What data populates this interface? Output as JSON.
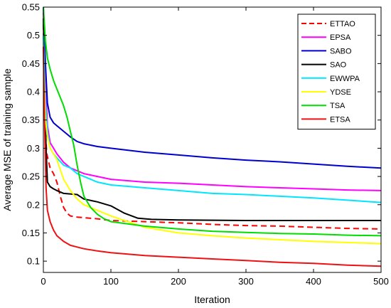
{
  "chart_data": {
    "type": "line",
    "title": "",
    "xlabel": "Iteration",
    "ylabel": "Average MSE of training sample",
    "xlim": [
      0,
      500
    ],
    "ylim": [
      0.08,
      0.55
    ],
    "x_ticks": [
      0,
      100,
      200,
      300,
      400,
      500
    ],
    "y_ticks": [
      0.1,
      0.15,
      0.2,
      0.25,
      0.3,
      0.35,
      0.4,
      0.45,
      0.5,
      0.55
    ],
    "x_tick_labels": [
      "0",
      "100",
      "200",
      "300",
      "400",
      "500"
    ],
    "y_tick_labels": [
      "0.1",
      "0.15",
      "0.2",
      "0.25",
      "0.3",
      "0.35",
      "0.4",
      "0.45",
      "0.5",
      "0.55"
    ],
    "grid": false,
    "legend_position": "top-right",
    "series": [
      {
        "name": "ETTAO",
        "color": "#ff0000",
        "dash": true,
        "points": [
          [
            0,
            0.52
          ],
          [
            2,
            0.35
          ],
          [
            5,
            0.29
          ],
          [
            10,
            0.265
          ],
          [
            15,
            0.255
          ],
          [
            20,
            0.24
          ],
          [
            25,
            0.215
          ],
          [
            30,
            0.195
          ],
          [
            35,
            0.185
          ],
          [
            40,
            0.18
          ],
          [
            50,
            0.178
          ],
          [
            60,
            0.177
          ],
          [
            80,
            0.175
          ],
          [
            100,
            0.172
          ],
          [
            150,
            0.17
          ],
          [
            200,
            0.168
          ],
          [
            250,
            0.165
          ],
          [
            300,
            0.163
          ],
          [
            350,
            0.162
          ],
          [
            400,
            0.16
          ],
          [
            450,
            0.158
          ],
          [
            500,
            0.157
          ]
        ]
      },
      {
        "name": "EPSA",
        "color": "#ff00ff",
        "dash": false,
        "points": [
          [
            0,
            0.54
          ],
          [
            3,
            0.42
          ],
          [
            6,
            0.34
          ],
          [
            10,
            0.31
          ],
          [
            15,
            0.3
          ],
          [
            20,
            0.29
          ],
          [
            30,
            0.275
          ],
          [
            40,
            0.265
          ],
          [
            50,
            0.26
          ],
          [
            60,
            0.255
          ],
          [
            80,
            0.25
          ],
          [
            100,
            0.245
          ],
          [
            150,
            0.24
          ],
          [
            200,
            0.238
          ],
          [
            250,
            0.235
          ],
          [
            300,
            0.232
          ],
          [
            350,
            0.23
          ],
          [
            400,
            0.228
          ],
          [
            450,
            0.226
          ],
          [
            500,
            0.225
          ]
        ]
      },
      {
        "name": "SABO",
        "color": "#0000cd",
        "dash": false,
        "points": [
          [
            0,
            0.55
          ],
          [
            3,
            0.45
          ],
          [
            6,
            0.38
          ],
          [
            10,
            0.355
          ],
          [
            15,
            0.345
          ],
          [
            20,
            0.34
          ],
          [
            30,
            0.33
          ],
          [
            40,
            0.32
          ],
          [
            50,
            0.312
          ],
          [
            60,
            0.308
          ],
          [
            80,
            0.303
          ],
          [
            100,
            0.3
          ],
          [
            150,
            0.293
          ],
          [
            200,
            0.288
          ],
          [
            250,
            0.283
          ],
          [
            300,
            0.279
          ],
          [
            350,
            0.276
          ],
          [
            400,
            0.272
          ],
          [
            450,
            0.268
          ],
          [
            500,
            0.265
          ]
        ]
      },
      {
        "name": "SAO",
        "color": "#000000",
        "dash": false,
        "points": [
          [
            0,
            0.53
          ],
          [
            2,
            0.4
          ],
          [
            4,
            0.3
          ],
          [
            6,
            0.24
          ],
          [
            10,
            0.232
          ],
          [
            15,
            0.228
          ],
          [
            20,
            0.225
          ],
          [
            30,
            0.22
          ],
          [
            50,
            0.218
          ],
          [
            60,
            0.21
          ],
          [
            80,
            0.205
          ],
          [
            100,
            0.198
          ],
          [
            120,
            0.185
          ],
          [
            140,
            0.176
          ],
          [
            160,
            0.174
          ],
          [
            200,
            0.173
          ],
          [
            300,
            0.172
          ],
          [
            400,
            0.172
          ],
          [
            500,
            0.172
          ]
        ]
      },
      {
        "name": "EWWPA",
        "color": "#00e5ff",
        "dash": false,
        "points": [
          [
            0,
            0.5
          ],
          [
            3,
            0.38
          ],
          [
            6,
            0.33
          ],
          [
            10,
            0.3
          ],
          [
            15,
            0.29
          ],
          [
            20,
            0.283
          ],
          [
            30,
            0.27
          ],
          [
            40,
            0.265
          ],
          [
            50,
            0.255
          ],
          [
            60,
            0.25
          ],
          [
            80,
            0.24
          ],
          [
            100,
            0.235
          ],
          [
            150,
            0.23
          ],
          [
            200,
            0.225
          ],
          [
            250,
            0.22
          ],
          [
            300,
            0.218
          ],
          [
            350,
            0.215
          ],
          [
            400,
            0.212
          ],
          [
            450,
            0.208
          ],
          [
            500,
            0.204
          ]
        ]
      },
      {
        "name": "YDSE",
        "color": "#ffff00",
        "dash": false,
        "points": [
          [
            0,
            0.46
          ],
          [
            3,
            0.35
          ],
          [
            6,
            0.32
          ],
          [
            10,
            0.3
          ],
          [
            15,
            0.29
          ],
          [
            20,
            0.28
          ],
          [
            25,
            0.262
          ],
          [
            30,
            0.245
          ],
          [
            40,
            0.225
          ],
          [
            50,
            0.21
          ],
          [
            60,
            0.2
          ],
          [
            80,
            0.19
          ],
          [
            100,
            0.18
          ],
          [
            150,
            0.16
          ],
          [
            200,
            0.15
          ],
          [
            250,
            0.145
          ],
          [
            300,
            0.141
          ],
          [
            350,
            0.138
          ],
          [
            400,
            0.135
          ],
          [
            450,
            0.133
          ],
          [
            500,
            0.131
          ]
        ]
      },
      {
        "name": "TSA",
        "color": "#00dd00",
        "dash": false,
        "points": [
          [
            0,
            0.55
          ],
          [
            3,
            0.49
          ],
          [
            6,
            0.46
          ],
          [
            10,
            0.44
          ],
          [
            15,
            0.42
          ],
          [
            20,
            0.405
          ],
          [
            25,
            0.39
          ],
          [
            30,
            0.375
          ],
          [
            35,
            0.355
          ],
          [
            40,
            0.33
          ],
          [
            45,
            0.305
          ],
          [
            50,
            0.27
          ],
          [
            55,
            0.24
          ],
          [
            60,
            0.215
          ],
          [
            70,
            0.195
          ],
          [
            80,
            0.183
          ],
          [
            90,
            0.175
          ],
          [
            100,
            0.17
          ],
          [
            150,
            0.162
          ],
          [
            200,
            0.157
          ],
          [
            250,
            0.153
          ],
          [
            300,
            0.151
          ],
          [
            350,
            0.149
          ],
          [
            400,
            0.148
          ],
          [
            450,
            0.146
          ],
          [
            500,
            0.145
          ]
        ]
      },
      {
        "name": "ETSA",
        "color": "#ee1111",
        "dash": false,
        "points": [
          [
            0,
            0.48
          ],
          [
            2,
            0.33
          ],
          [
            4,
            0.23
          ],
          [
            6,
            0.19
          ],
          [
            10,
            0.17
          ],
          [
            15,
            0.155
          ],
          [
            20,
            0.145
          ],
          [
            30,
            0.135
          ],
          [
            40,
            0.128
          ],
          [
            50,
            0.125
          ],
          [
            60,
            0.122
          ],
          [
            80,
            0.118
          ],
          [
            100,
            0.115
          ],
          [
            150,
            0.11
          ],
          [
            200,
            0.107
          ],
          [
            250,
            0.104
          ],
          [
            300,
            0.101
          ],
          [
            350,
            0.098
          ],
          [
            400,
            0.096
          ],
          [
            450,
            0.093
          ],
          [
            500,
            0.091
          ]
        ]
      }
    ]
  }
}
